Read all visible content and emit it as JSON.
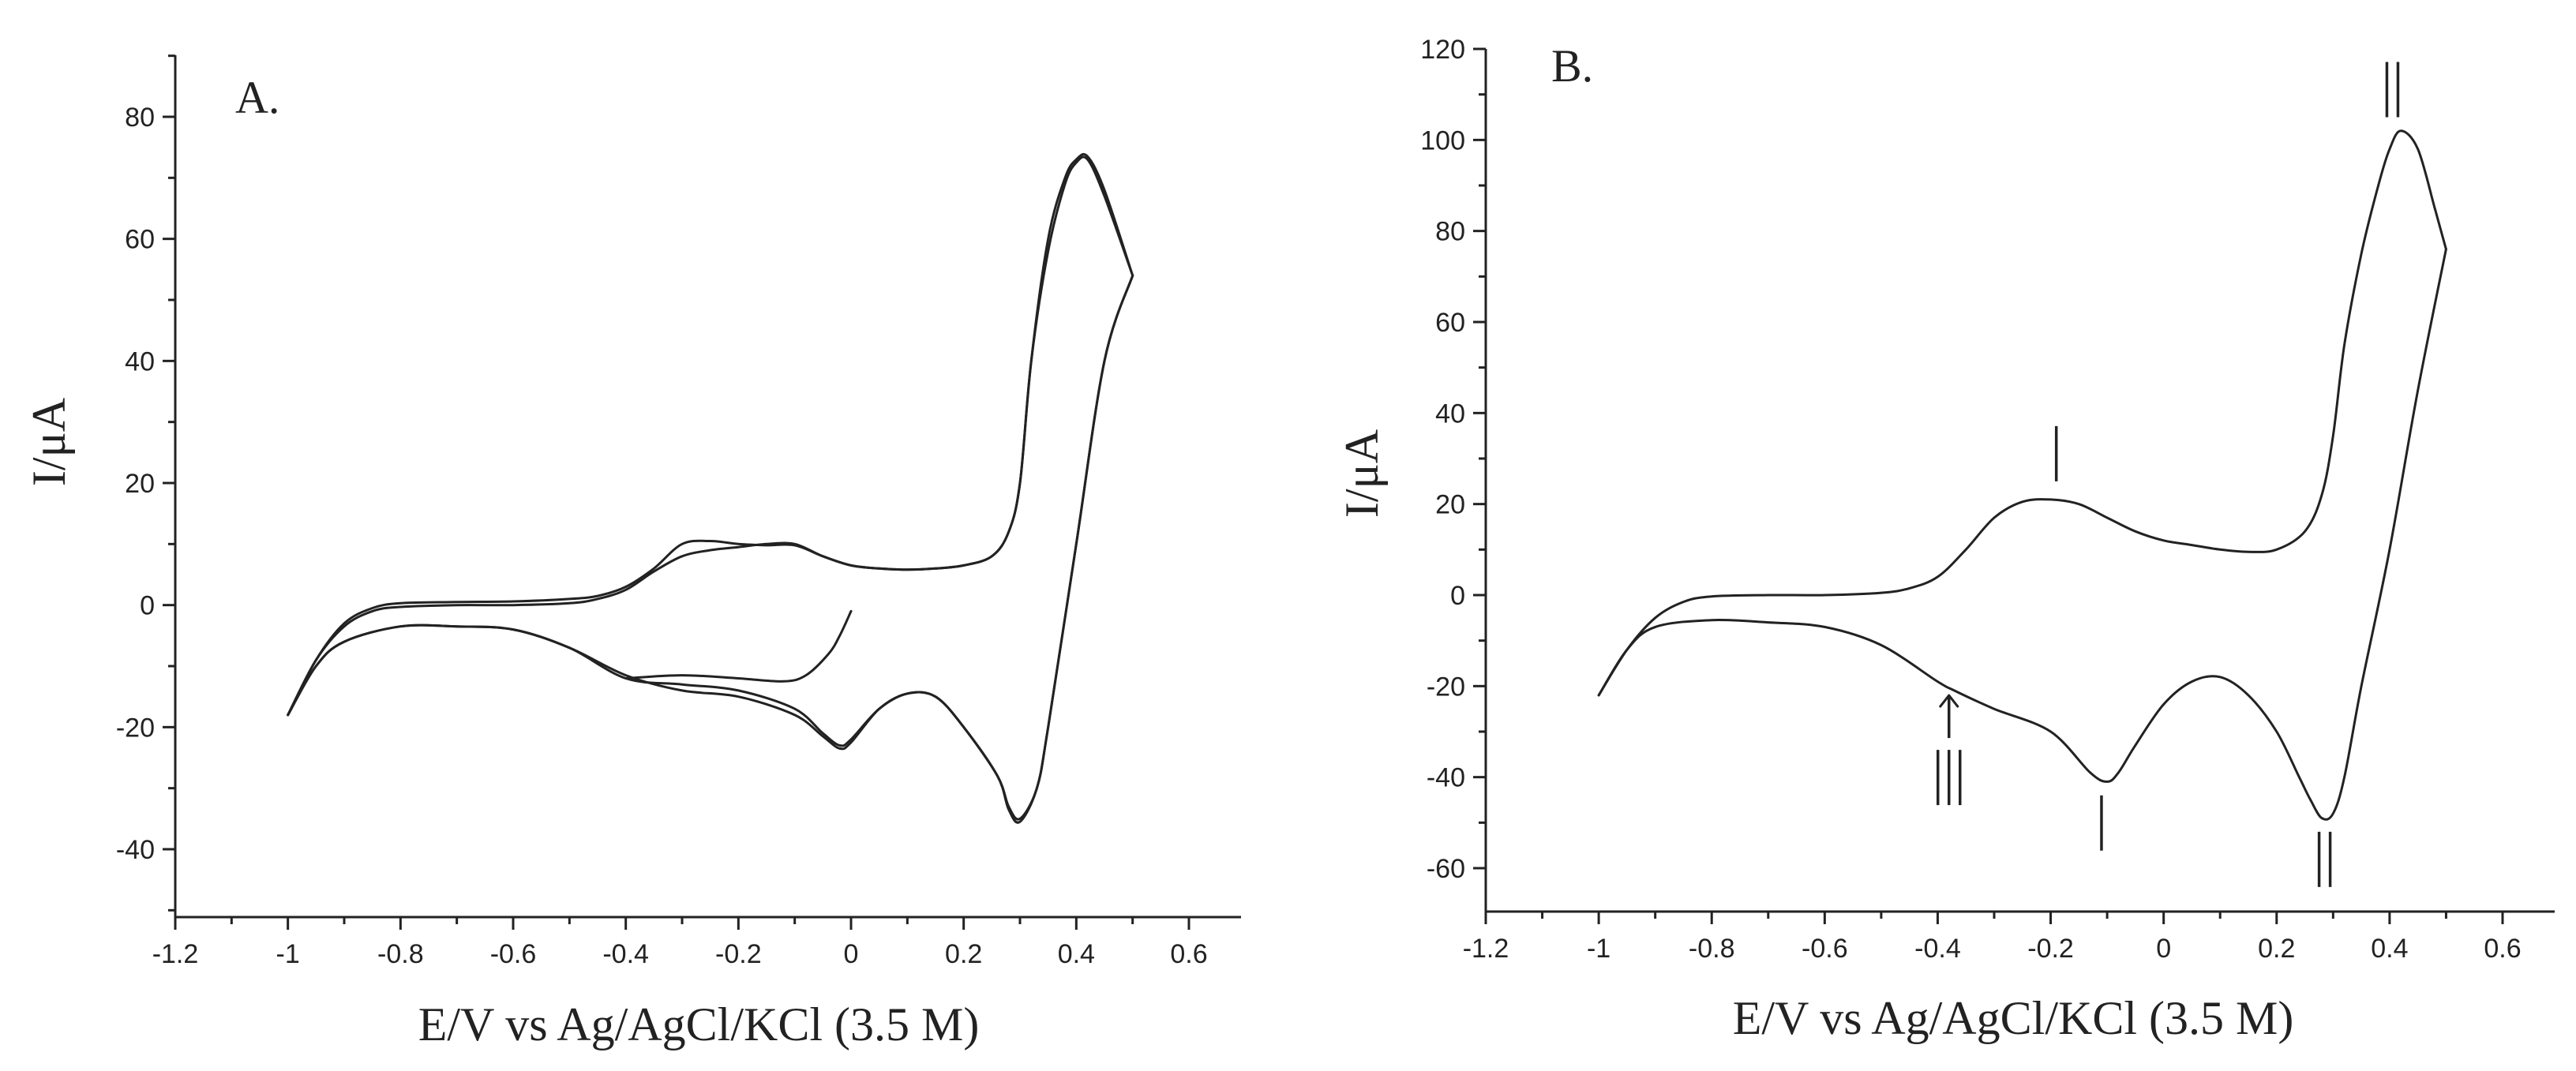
{
  "chart_data": [
    {
      "type": "line",
      "panel_label": "A.",
      "xlabel": "E/V vs Ag/AgCl/KCl (3.5 M)",
      "ylabel": "I/μA",
      "xlim": [
        -1.2,
        0.7
      ],
      "ylim": [
        -50,
        90
      ],
      "x_ticks": [
        "-1.2",
        "-1",
        "-0.8",
        "-0.6",
        "-0.4",
        "-0.2",
        "0",
        "0.2",
        "0.4",
        "0.6"
      ],
      "y_ticks": [
        "-40",
        "-20",
        "0",
        "20",
        "40",
        "60",
        "80"
      ],
      "grid": false,
      "series": [
        {
          "x": [
            -1.0,
            -0.95,
            -0.9,
            -0.85,
            -0.8,
            -0.7,
            -0.6,
            -0.5,
            -0.45,
            -0.4,
            -0.35,
            -0.3,
            -0.25,
            -0.2,
            -0.15,
            -0.1,
            -0.05,
            0.0,
            0.05,
            0.1,
            0.15,
            0.2,
            0.25,
            0.28,
            0.3,
            0.32,
            0.35,
            0.38,
            0.4,
            0.42,
            0.45,
            0.5
          ],
          "y": [
            -18,
            -9,
            -3,
            -0.5,
            0.3,
            0.5,
            0.6,
            1,
            1.5,
            3,
            6,
            10,
            10.5,
            10,
            9.8,
            9.8,
            8,
            6.5,
            6,
            5.8,
            6,
            6.5,
            8,
            12,
            20,
            40,
            60,
            70,
            73,
            73.5,
            68,
            54
          ]
        },
        {
          "x": [
            -1.0,
            -0.95,
            -0.9,
            -0.85,
            -0.8,
            -0.7,
            -0.6,
            -0.5,
            -0.45,
            -0.4,
            -0.35,
            -0.3,
            -0.25,
            -0.2,
            -0.15,
            -0.1,
            -0.05,
            0.0,
            0.05,
            0.1,
            0.15,
            0.2,
            0.25,
            0.28,
            0.3,
            0.32,
            0.35,
            0.38,
            0.4,
            0.42,
            0.45,
            0.5
          ],
          "y": [
            -18,
            -9,
            -3.5,
            -1,
            -0.3,
            0,
            0,
            0.3,
            1,
            2.5,
            5.5,
            8,
            9,
            9.5,
            10,
            10,
            8,
            6.5,
            6,
            5.8,
            6,
            6.5,
            8,
            12,
            20,
            40,
            58,
            69,
            72.5,
            73,
            67,
            54
          ]
        },
        {
          "x": [
            0.5,
            0.45,
            0.4,
            0.35,
            0.33,
            0.3,
            0.28,
            0.26,
            0.2,
            0.15,
            0.1,
            0.05,
            0.0,
            -0.02,
            -0.05,
            -0.1,
            -0.2,
            -0.3,
            -0.4,
            -0.5,
            -0.6,
            -0.7,
            -0.8,
            -0.9,
            -0.95,
            -1.0
          ],
          "y": [
            54,
            40,
            10,
            -20,
            -30,
            -35,
            -33,
            -28,
            -20,
            -15,
            -14.5,
            -17,
            -22,
            -23,
            -21,
            -17,
            -14,
            -13,
            -12,
            -7,
            -4,
            -3.5,
            -3.5,
            -6,
            -10,
            -18
          ]
        },
        {
          "x": [
            0.5,
            0.45,
            0.4,
            0.35,
            0.33,
            0.3,
            0.28,
            0.26,
            0.2,
            0.15,
            0.1,
            0.05,
            0.0,
            -0.02,
            -0.05,
            -0.1,
            -0.2,
            -0.3,
            -0.4,
            -0.5,
            -0.6,
            -0.7,
            -0.8,
            -0.9,
            -0.95,
            -1.0
          ],
          "y": [
            54,
            40,
            10,
            -20,
            -30,
            -35.5,
            -33.5,
            -28,
            -20,
            -15,
            -14.5,
            -17,
            -22.5,
            -23.5,
            -21.5,
            -18,
            -15,
            -14,
            -11.5,
            -7,
            -4,
            -3.5,
            -3.5,
            -6,
            -10,
            -18
          ]
        },
        {
          "x": [
            -0.4,
            -0.3,
            -0.2,
            -0.12,
            -0.08,
            -0.04,
            -0.02,
            0.0
          ],
          "y": [
            -12,
            -11.5,
            -12,
            -12.5,
            -11.5,
            -8,
            -5,
            -1
          ]
        }
      ],
      "annotations": []
    },
    {
      "type": "line",
      "panel_label": "B.",
      "xlabel": "E/V vs Ag/AgCl/KCl (3.5 M)",
      "ylabel": "I/μA",
      "xlim": [
        -1.2,
        0.7
      ],
      "ylim": [
        -70,
        120
      ],
      "x_ticks": [
        "-1.2",
        "-1",
        "-0.8",
        "-0.6",
        "-0.4",
        "-0.2",
        "0",
        "0.2",
        "0.4",
        "0.6"
      ],
      "y_ticks": [
        "-60",
        "-40",
        "-20",
        "0",
        "20",
        "40",
        "60",
        "80",
        "100",
        "120"
      ],
      "grid": false,
      "series": [
        {
          "x": [
            -1.0,
            -0.95,
            -0.9,
            -0.85,
            -0.8,
            -0.7,
            -0.6,
            -0.5,
            -0.45,
            -0.4,
            -0.35,
            -0.3,
            -0.25,
            -0.2,
            -0.15,
            -0.1,
            -0.05,
            0.0,
            0.05,
            0.1,
            0.15,
            0.2,
            0.25,
            0.28,
            0.3,
            0.32,
            0.35,
            0.38,
            0.4,
            0.42,
            0.45,
            0.48,
            0.5
          ],
          "y": [
            -22,
            -12,
            -5,
            -1.5,
            -0.3,
            0,
            0,
            0.5,
            1.5,
            4,
            10,
            17,
            20.5,
            21,
            20,
            17,
            14,
            12,
            11,
            10,
            9.5,
            10,
            14,
            22,
            35,
            55,
            75,
            90,
            98,
            102,
            98,
            85,
            76
          ]
        },
        {
          "x": [
            0.5,
            0.45,
            0.4,
            0.35,
            0.32,
            0.3,
            0.28,
            0.26,
            0.24,
            0.2,
            0.15,
            0.1,
            0.05,
            0.0,
            -0.05,
            -0.08,
            -0.1,
            -0.13,
            -0.2,
            -0.3,
            -0.37,
            -0.4,
            -0.5,
            -0.6,
            -0.7,
            -0.8,
            -0.9,
            -0.95,
            -1.0
          ],
          "y": [
            76,
            45,
            10,
            -20,
            -40,
            -48,
            -49,
            -45,
            -40,
            -30,
            -22,
            -18,
            -19,
            -24,
            -33,
            -39,
            -41,
            -39,
            -30,
            -25,
            -21,
            -19,
            -11,
            -7,
            -6,
            -5.5,
            -7,
            -12,
            -22
          ]
        }
      ],
      "annotations": [
        {
          "label": "I",
          "x": -0.19,
          "y": 25,
          "position": "above"
        },
        {
          "label": "II",
          "x": 0.405,
          "y": 105,
          "position": "above"
        },
        {
          "label": "I",
          "x": -0.11,
          "y": -44,
          "position": "below"
        },
        {
          "label": "II",
          "x": 0.285,
          "y": -52,
          "position": "below"
        },
        {
          "label": "III",
          "x": -0.38,
          "y": -21,
          "position": "below",
          "arrow": true
        }
      ]
    }
  ]
}
